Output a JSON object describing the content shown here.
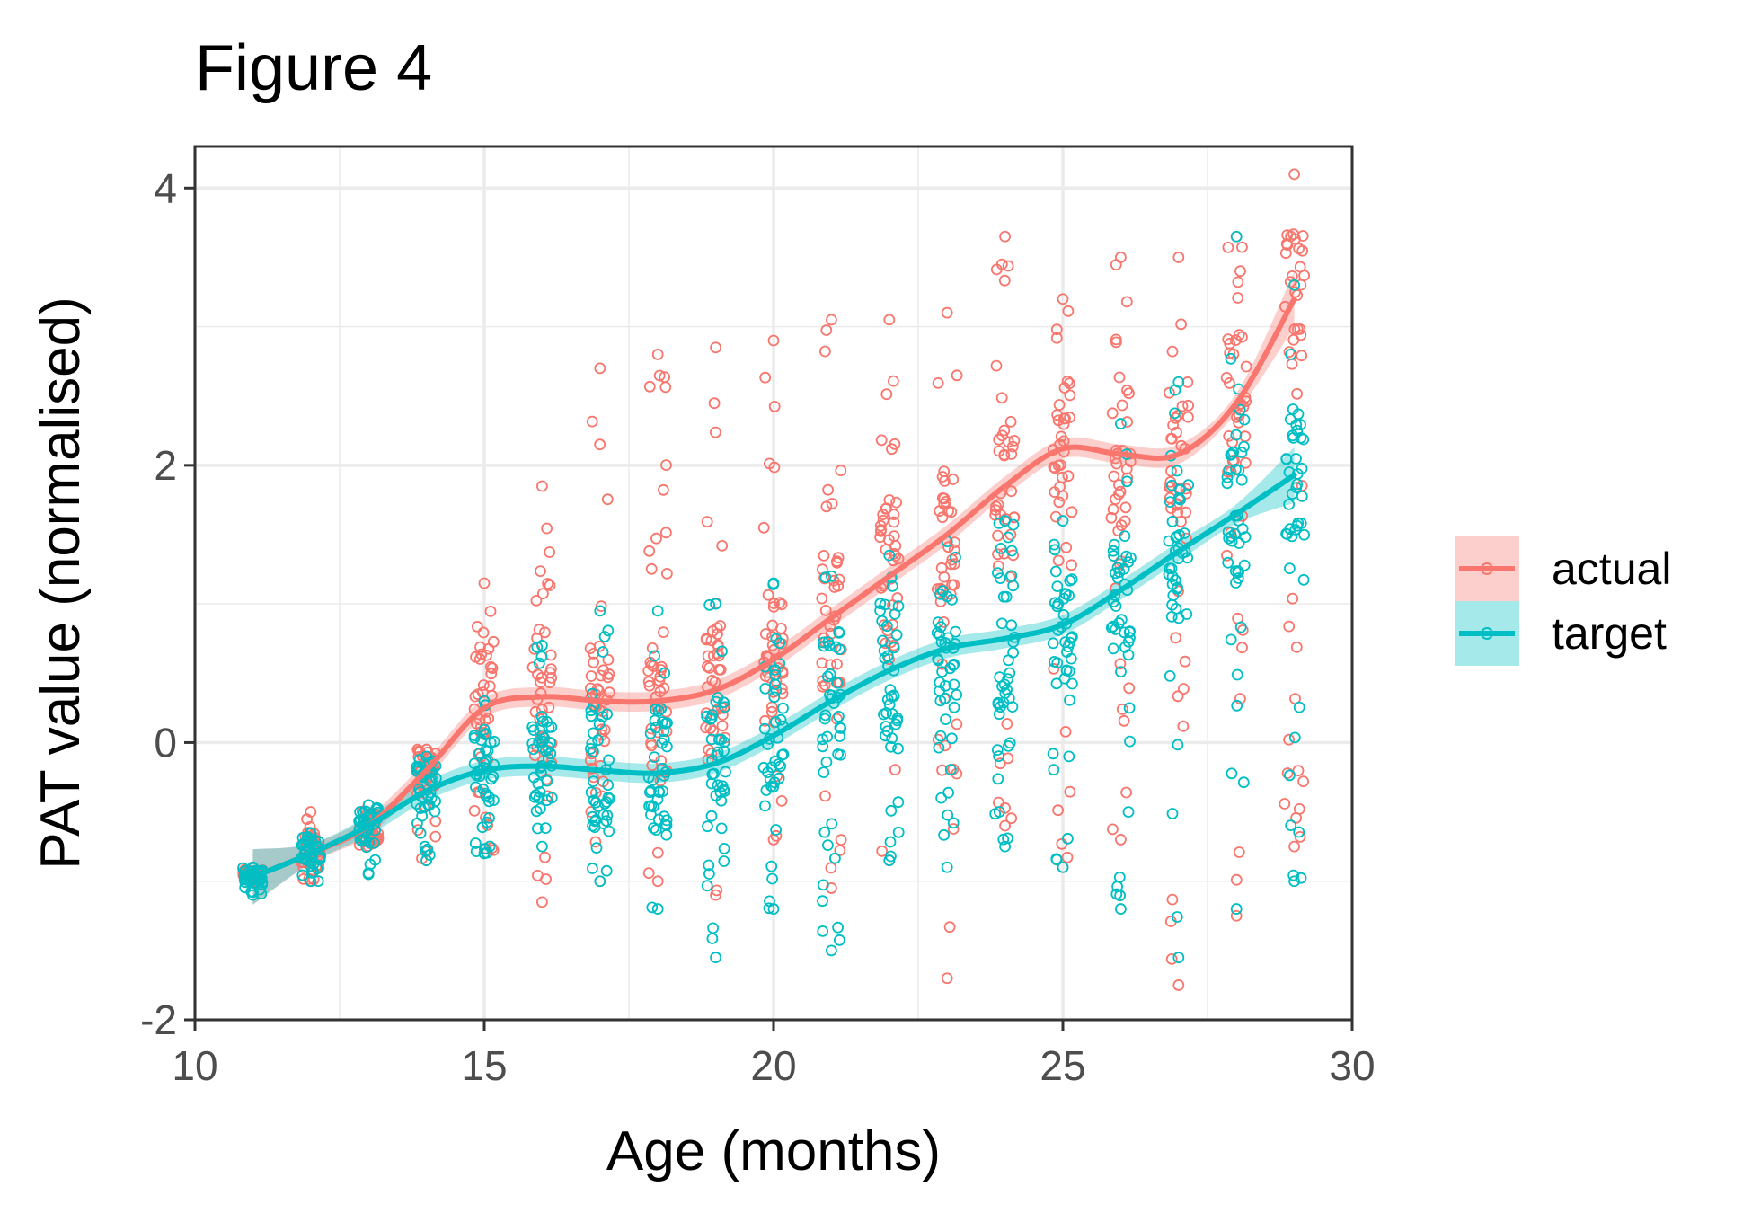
{
  "chart_data": {
    "type": "scatter",
    "title": "Figure 4",
    "xlabel": "Age (months)",
    "ylabel": "PAT value (normalised)",
    "xlim": [
      10,
      30
    ],
    "ylim": [
      -2,
      4.3
    ],
    "x_ticks": [
      10,
      15,
      20,
      25,
      30
    ],
    "x_tick_labels": [
      "10",
      "15",
      "20",
      "25",
      "30"
    ],
    "y_ticks": [
      -2,
      0,
      2,
      4
    ],
    "y_tick_labels": [
      "-2",
      "0",
      "2",
      "4"
    ],
    "grid": true,
    "legend_position": "right",
    "series": [
      {
        "name": "actual",
        "color": "#F8766D",
        "ribbon_color": "#F8766D",
        "point_spread": [
          {
            "x": 11,
            "min": -1.0,
            "max": -0.9
          },
          {
            "x": 12,
            "min": -1.0,
            "max": -0.5
          },
          {
            "x": 13,
            "min": -0.95,
            "max": -0.45
          },
          {
            "x": 14,
            "min": -0.85,
            "max": -0.05
          },
          {
            "x": 15,
            "min": -0.8,
            "max": 1.15
          },
          {
            "x": 16,
            "min": -1.15,
            "max": 1.85
          },
          {
            "x": 17,
            "min": -1.0,
            "max": 2.7
          },
          {
            "x": 18,
            "min": -1.0,
            "max": 2.8
          },
          {
            "x": 19,
            "min": -1.1,
            "max": 2.85
          },
          {
            "x": 20,
            "min": -0.7,
            "max": 2.9
          },
          {
            "x": 21,
            "min": -1.05,
            "max": 3.05
          },
          {
            "x": 22,
            "min": -0.85,
            "max": 3.05
          },
          {
            "x": 23,
            "min": -1.7,
            "max": 3.1
          },
          {
            "x": 24,
            "min": -0.6,
            "max": 3.65
          },
          {
            "x": 25,
            "min": -0.9,
            "max": 3.2
          },
          {
            "x": 26,
            "min": -0.7,
            "max": 3.5
          },
          {
            "x": 27,
            "min": -1.75,
            "max": 3.5
          },
          {
            "x": 28,
            "min": -1.25,
            "max": 3.65
          },
          {
            "x": 29,
            "min": -0.75,
            "max": 4.1
          }
        ],
        "smooth": [
          {
            "x": 11,
            "y": -0.97
          },
          {
            "x": 12,
            "y": -0.8
          },
          {
            "x": 13,
            "y": -0.6
          },
          {
            "x": 14,
            "y": -0.2
          },
          {
            "x": 15,
            "y": 0.25
          },
          {
            "x": 16,
            "y": 0.33
          },
          {
            "x": 17,
            "y": 0.3
          },
          {
            "x": 18,
            "y": 0.3
          },
          {
            "x": 19,
            "y": 0.38
          },
          {
            "x": 20,
            "y": 0.6
          },
          {
            "x": 21,
            "y": 0.9
          },
          {
            "x": 22,
            "y": 1.2
          },
          {
            "x": 23,
            "y": 1.5
          },
          {
            "x": 24,
            "y": 1.85
          },
          {
            "x": 25,
            "y": 2.12
          },
          {
            "x": 26,
            "y": 2.08
          },
          {
            "x": 27,
            "y": 2.08
          },
          {
            "x": 28,
            "y": 2.45
          },
          {
            "x": 29,
            "y": 3.2
          }
        ]
      },
      {
        "name": "target",
        "color": "#00BFC4",
        "ribbon_color": "#00BFC4",
        "point_spread": [
          {
            "x": 11,
            "min": -1.1,
            "max": -0.9
          },
          {
            "x": 12,
            "min": -1.0,
            "max": -0.65
          },
          {
            "x": 13,
            "min": -0.95,
            "max": -0.45
          },
          {
            "x": 14,
            "min": -0.85,
            "max": -0.1
          },
          {
            "x": 15,
            "min": -0.8,
            "max": 0.3
          },
          {
            "x": 16,
            "min": -0.75,
            "max": 0.7
          },
          {
            "x": 17,
            "min": -1.0,
            "max": 0.95
          },
          {
            "x": 18,
            "min": -1.2,
            "max": 0.95
          },
          {
            "x": 19,
            "min": -1.55,
            "max": 1.0
          },
          {
            "x": 20,
            "min": -1.2,
            "max": 1.15
          },
          {
            "x": 21,
            "min": -1.5,
            "max": 1.2
          },
          {
            "x": 22,
            "min": -0.85,
            "max": 1.35
          },
          {
            "x": 23,
            "min": -0.9,
            "max": 1.45
          },
          {
            "x": 24,
            "min": -0.75,
            "max": 1.6
          },
          {
            "x": 25,
            "min": -0.9,
            "max": 1.6
          },
          {
            "x": 26,
            "min": -1.2,
            "max": 2.3
          },
          {
            "x": 27,
            "min": -1.55,
            "max": 2.6
          },
          {
            "x": 28,
            "min": -1.2,
            "max": 3.65
          },
          {
            "x": 29,
            "min": -1.0,
            "max": 3.3
          }
        ],
        "smooth": [
          {
            "x": 11,
            "y": -0.97
          },
          {
            "x": 12,
            "y": -0.8
          },
          {
            "x": 13,
            "y": -0.6
          },
          {
            "x": 14,
            "y": -0.35
          },
          {
            "x": 15,
            "y": -0.2
          },
          {
            "x": 16,
            "y": -0.17
          },
          {
            "x": 17,
            "y": -0.2
          },
          {
            "x": 18,
            "y": -0.22
          },
          {
            "x": 19,
            "y": -0.15
          },
          {
            "x": 20,
            "y": 0.05
          },
          {
            "x": 21,
            "y": 0.3
          },
          {
            "x": 22,
            "y": 0.52
          },
          {
            "x": 23,
            "y": 0.68
          },
          {
            "x": 24,
            "y": 0.75
          },
          {
            "x": 25,
            "y": 0.85
          },
          {
            "x": 26,
            "y": 1.1
          },
          {
            "x": 27,
            "y": 1.38
          },
          {
            "x": 28,
            "y": 1.65
          },
          {
            "x": 29,
            "y": 1.93
          }
        ]
      }
    ]
  }
}
